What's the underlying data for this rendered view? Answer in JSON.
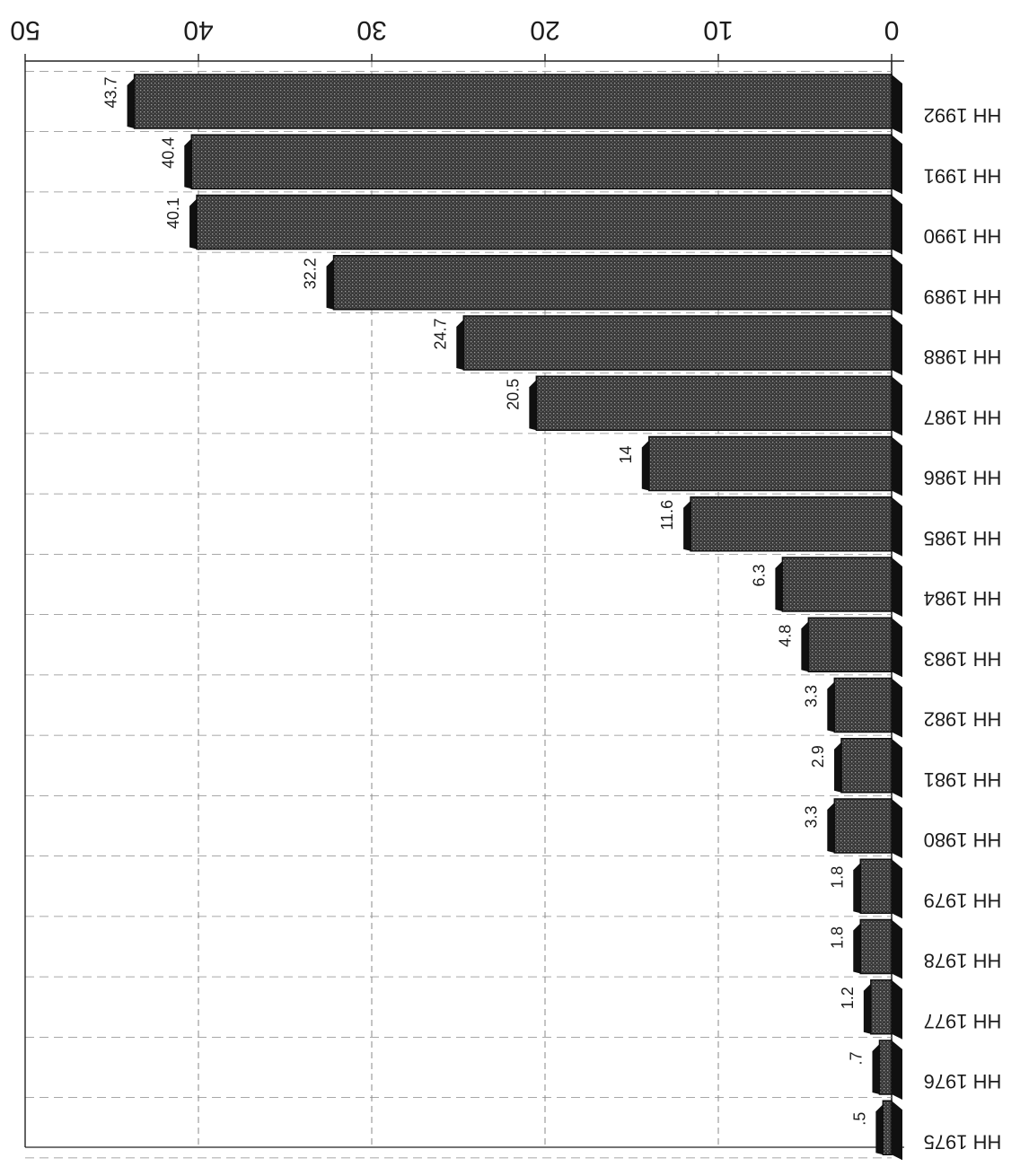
{
  "chart_data": {
    "type": "bar",
    "orientation": "horizontal",
    "image_rotated": "180deg",
    "categories": [
      "HH 1992",
      "HH 1991",
      "HH 1990",
      "HH 1989",
      "HH 1988",
      "HH 1987",
      "HH 1986",
      "HH 1985",
      "HH 1984",
      "HH 1983",
      "HH 1982",
      "HH 1981",
      "HH 1980",
      "HH 1979",
      "HH 1978",
      "HH 1977",
      "HH 1976",
      "HH 1975"
    ],
    "values": [
      43.7,
      40.4,
      40.1,
      32.2,
      24.7,
      20.5,
      14,
      11.6,
      6.3,
      4.8,
      3.3,
      2.9,
      3.3,
      1.8,
      1.8,
      1.2,
      0.7,
      0.5
    ],
    "data_labels": [
      "43.7",
      "40.4",
      "40.1",
      "32.2",
      "24.7",
      "20.5",
      "14",
      "11.6",
      "6.3",
      "4.8",
      "3.3",
      "2.9",
      "3.3",
      "1.8",
      "1.8",
      "1.2",
      ".7",
      ".5"
    ],
    "tick_labels": [
      "0",
      "10",
      "20",
      "30",
      "40",
      "50"
    ],
    "xlim": [
      0,
      50
    ],
    "grid": true,
    "title": "",
    "xlabel": "",
    "ylabel": "",
    "colors": {
      "bar_fill": "#4a4a4a",
      "bar_edge": "#0e0e0e",
      "bar_shadow": "#101010",
      "grid": "#8a8a8a",
      "axis": "#222222"
    }
  }
}
